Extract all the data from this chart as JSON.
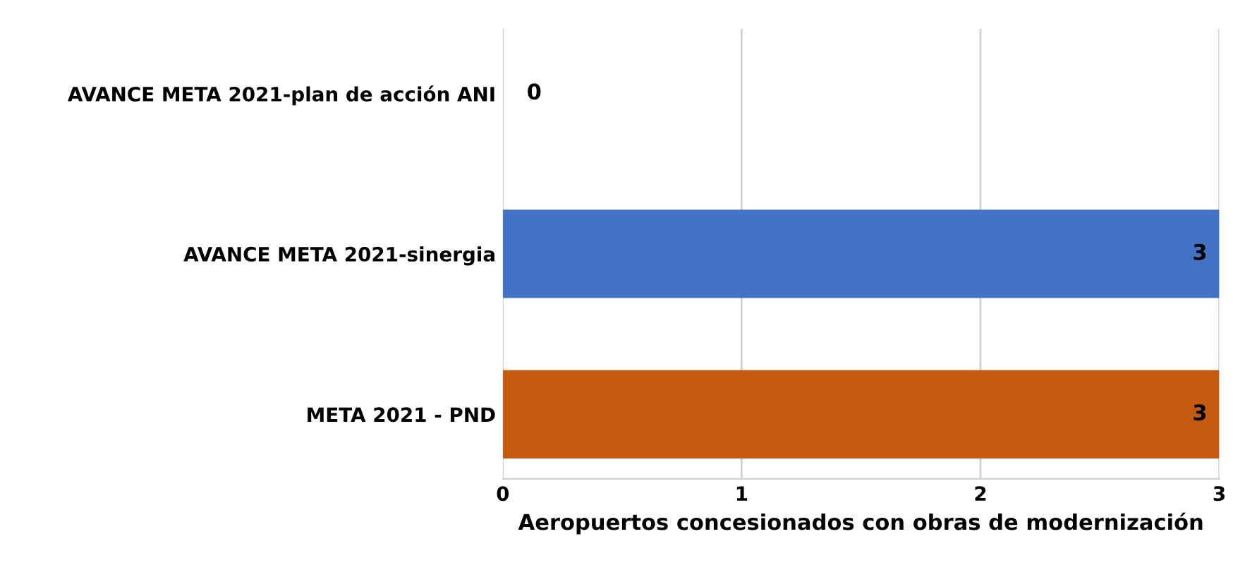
{
  "chart_data": {
    "type": "bar",
    "orientation": "horizontal",
    "categories": [
      "AVANCE META 2021-plan de acción ANI",
      "AVANCE META 2021-sinergia",
      "META 2021 - PND"
    ],
    "values": [
      0,
      3,
      3
    ],
    "colors": [
      "#2f4b8c",
      "#4472c4",
      "#c55a11"
    ],
    "xlabel": "Aeropuertos concesionados con obras de modernización",
    "xlim": [
      0,
      3
    ],
    "xticks": [
      0,
      1,
      2,
      3
    ],
    "grid": "x",
    "data_labels": true
  }
}
